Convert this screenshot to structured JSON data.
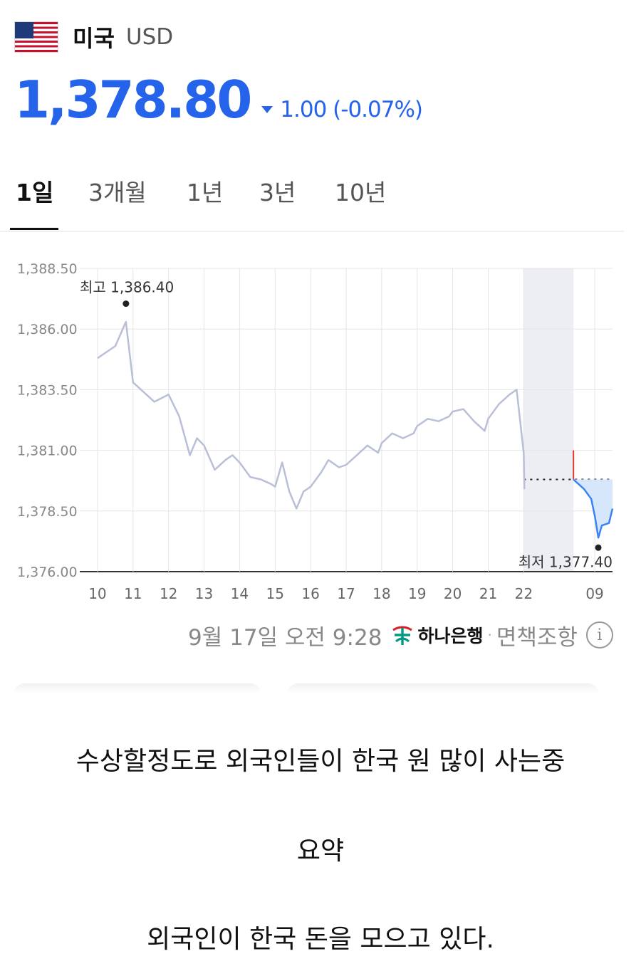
{
  "currency": {
    "country": "미국",
    "code": "USD",
    "flag_icon": "us-flag-icon",
    "price": "1,378.80",
    "change": "1.00 (-0.07%)",
    "direction": "down",
    "accent_color": "#2563eb"
  },
  "tabs": [
    {
      "label": "1일",
      "active": true
    },
    {
      "label": "3개월",
      "active": false
    },
    {
      "label": "1년",
      "active": false
    },
    {
      "label": "3년",
      "active": false
    },
    {
      "label": "10년",
      "active": false
    }
  ],
  "chart_data": {
    "type": "line",
    "title": "",
    "xlabel": "",
    "ylabel": "",
    "ylim": [
      1376.0,
      1388.5
    ],
    "yticks": [
      "1,388.50",
      "1,386.00",
      "1,383.50",
      "1,381.00",
      "1,378.50",
      "1,376.00"
    ],
    "xticks": [
      "10",
      "11",
      "12",
      "13",
      "14",
      "15",
      "16",
      "17",
      "18",
      "19",
      "20",
      "21",
      "22",
      "09"
    ],
    "night_icon": "moon-icon",
    "grid": true,
    "previous_close": 1379.8,
    "annotations": {
      "high_label": "최고 1,386.40",
      "low_label": "최저 1,377.40"
    },
    "series": [
      {
        "x": [
          10.0,
          10.5,
          10.8,
          11.0,
          11.3,
          11.6,
          12.0,
          12.3,
          12.6,
          12.8,
          13.0,
          13.3,
          13.6,
          13.8,
          14.0,
          14.3,
          14.6,
          14.9,
          15.0,
          15.2,
          15.4,
          15.6,
          15.8,
          16.0,
          16.3,
          16.5,
          16.8,
          17.0,
          17.3,
          17.6,
          17.9,
          18.0,
          18.3,
          18.6,
          18.9,
          19.0,
          19.3,
          19.6,
          19.9,
          20.0,
          20.3,
          20.6,
          20.9,
          21.0,
          21.3,
          21.6,
          21.8,
          22.0,
          22.02
        ],
        "values": [
          1384.8,
          1385.3,
          1386.3,
          1383.8,
          1383.4,
          1383.0,
          1383.3,
          1382.4,
          1380.8,
          1381.5,
          1381.2,
          1380.2,
          1380.6,
          1380.8,
          1380.5,
          1379.9,
          1379.8,
          1379.6,
          1379.5,
          1380.5,
          1379.3,
          1378.6,
          1379.3,
          1379.5,
          1380.1,
          1380.6,
          1380.3,
          1380.4,
          1380.8,
          1381.2,
          1380.9,
          1381.3,
          1381.7,
          1381.5,
          1381.7,
          1382.0,
          1382.3,
          1382.2,
          1382.4,
          1382.6,
          1382.7,
          1382.2,
          1381.8,
          1382.3,
          1382.9,
          1383.3,
          1383.5,
          1380.9,
          1379.4
        ]
      },
      {
        "x": [
          23.4,
          23.7,
          23.9,
          24.0,
          24.1,
          24.2,
          24.4,
          24.5
        ],
        "values": [
          1379.8,
          1379.4,
          1379.0,
          1378.3,
          1377.4,
          1377.9,
          1378.0,
          1378.6
        ]
      }
    ]
  },
  "source": {
    "date": "9월 17일 오전 9:28",
    "bank_icon": "hana-bank-logo-icon",
    "bank": "하나은행",
    "separator": "·",
    "disclaimer": "면책조항",
    "info_icon": "info-icon"
  },
  "captions": [
    "수상할정도로 외국인들이 한국 원 많이 사는중",
    "요약",
    "외국인이 한국 돈을 모으고 있다."
  ]
}
